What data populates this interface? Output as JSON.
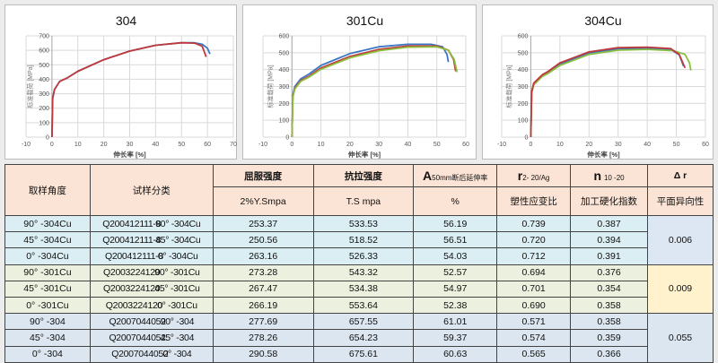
{
  "charts": [
    {
      "title": "304",
      "xlabel": "伸长率 [%]",
      "ylabel": "标准载荷 [MPa]",
      "type": "line",
      "xlim": [
        -10,
        70
      ],
      "ylim": [
        0,
        700
      ],
      "xticks": [
        -10,
        0,
        10,
        20,
        30,
        40,
        50,
        60,
        70
      ],
      "yticks": [
        0,
        100,
        200,
        300,
        400,
        500,
        600,
        700
      ],
      "grid": true,
      "series": [
        {
          "color": "#3b78c4",
          "points": [
            [
              0,
              0
            ],
            [
              0.3,
              270
            ],
            [
              1,
              330
            ],
            [
              3,
              385
            ],
            [
              6,
              410
            ],
            [
              10,
              455
            ],
            [
              20,
              535
            ],
            [
              30,
              595
            ],
            [
              40,
              635
            ],
            [
              50,
              652
            ],
            [
              55,
              652
            ],
            [
              58,
              642
            ],
            [
              60,
              615
            ],
            [
              61,
              575
            ]
          ]
        },
        {
          "color": "#c0393b",
          "points": [
            [
              0,
              0
            ],
            [
              0.3,
              270
            ],
            [
              1,
              330
            ],
            [
              3,
              385
            ],
            [
              6,
              410
            ],
            [
              10,
              455
            ],
            [
              20,
              535
            ],
            [
              30,
              595
            ],
            [
              40,
              635
            ],
            [
              50,
              652
            ],
            [
              55,
              650
            ],
            [
              58,
              628
            ],
            [
              59.5,
              555
            ]
          ]
        }
      ]
    },
    {
      "title": "301Cu",
      "xlabel": "伸长率 [%]",
      "ylabel": "标准载荷 [MPa]",
      "type": "line",
      "xlim": [
        -10,
        60
      ],
      "ylim": [
        0,
        600
      ],
      "xticks": [
        -10,
        0,
        10,
        20,
        30,
        40,
        50,
        60
      ],
      "yticks": [
        0,
        100,
        200,
        300,
        400,
        500,
        600
      ],
      "grid": true,
      "series": [
        {
          "color": "#3b78c4",
          "points": [
            [
              0,
              0
            ],
            [
              0.3,
              250
            ],
            [
              1,
              300
            ],
            [
              3,
              345
            ],
            [
              6,
              375
            ],
            [
              10,
              425
            ],
            [
              20,
              495
            ],
            [
              30,
              535
            ],
            [
              40,
              550
            ],
            [
              48,
              550
            ],
            [
              52,
              535
            ],
            [
              53.5,
              490
            ],
            [
              54,
              445
            ]
          ]
        },
        {
          "color": "#c0393b",
          "points": [
            [
              0,
              0
            ],
            [
              0.3,
              240
            ],
            [
              1,
              290
            ],
            [
              3,
              335
            ],
            [
              6,
              362
            ],
            [
              10,
              410
            ],
            [
              20,
              478
            ],
            [
              30,
              520
            ],
            [
              40,
              540
            ],
            [
              50,
              540
            ],
            [
              54,
              515
            ],
            [
              55.8,
              460
            ],
            [
              56.5,
              390
            ]
          ]
        },
        {
          "color": "#8cbf3f",
          "points": [
            [
              0,
              0
            ],
            [
              0.3,
              235
            ],
            [
              1,
              285
            ],
            [
              3,
              330
            ],
            [
              6,
              357
            ],
            [
              10,
              402
            ],
            [
              20,
              470
            ],
            [
              30,
              512
            ],
            [
              40,
              533
            ],
            [
              50,
              535
            ],
            [
              54,
              515
            ],
            [
              56,
              460
            ],
            [
              57,
              385
            ]
          ]
        }
      ]
    },
    {
      "title": "304Cu",
      "xlabel": "伸长率 [%]",
      "ylabel": "标准载荷 [MPa]",
      "type": "line",
      "xlim": [
        -10,
        60
      ],
      "ylim": [
        0,
        600
      ],
      "xticks": [
        -10,
        0,
        10,
        20,
        30,
        40,
        50,
        60
      ],
      "yticks": [
        0,
        100,
        200,
        300,
        400,
        500,
        600
      ],
      "grid": true,
      "series": [
        {
          "color": "#3b78c4",
          "points": [
            [
              0,
              0
            ],
            [
              0.3,
              265
            ],
            [
              1,
              315
            ],
            [
              4,
              365
            ],
            [
              6,
              383
            ],
            [
              10,
              432
            ],
            [
              20,
              498
            ],
            [
              30,
              523
            ],
            [
              40,
              527
            ],
            [
              48,
              520
            ],
            [
              51,
              488
            ],
            [
              52.5,
              420
            ]
          ]
        },
        {
          "color": "#8cbf3f",
          "points": [
            [
              0,
              0
            ],
            [
              0.3,
              260
            ],
            [
              1,
              310
            ],
            [
              4,
              360
            ],
            [
              6,
              378
            ],
            [
              10,
              425
            ],
            [
              20,
              490
            ],
            [
              30,
              515
            ],
            [
              40,
              520
            ],
            [
              49,
              512
            ],
            [
              53,
              490
            ],
            [
              54.5,
              440
            ],
            [
              55,
              395
            ]
          ]
        },
        {
          "color": "#c0393b",
          "points": [
            [
              0,
              0
            ],
            [
              0.3,
              270
            ],
            [
              1,
              320
            ],
            [
              4,
              370
            ],
            [
              6,
              390
            ],
            [
              10,
              440
            ],
            [
              20,
              505
            ],
            [
              30,
              530
            ],
            [
              40,
              533
            ],
            [
              48,
              525
            ],
            [
              51,
              490
            ],
            [
              53,
              410
            ]
          ]
        }
      ]
    }
  ],
  "table": {
    "headers": {
      "angle": "取样角度",
      "sample": "试样分类",
      "ys": "屈服强度",
      "ys_unit": "2%Y.Smpa",
      "ts": "抗拉强度",
      "ts_unit": "T.S mpa",
      "el_big": "A",
      "el_sub": "50mm断后延伸率",
      "el_unit": "%",
      "r_big": "r",
      "r_sub": "2- 20/Ag",
      "r_name": "塑性应变比",
      "n_big": "n",
      "n_sub": "10 -20",
      "n_name": "加工硬化指数",
      "dr": "Δ r",
      "dr_name": "平面异向性"
    },
    "rows": [
      {
        "angle": "90° -304Cu",
        "id": "Q200412111-8",
        "sa": "90° -304Cu",
        "ys": "253.37",
        "ts": "533.53",
        "el": "56.19",
        "r": "0.739",
        "n": "0.387"
      },
      {
        "angle": "45° -304Cu",
        "id": "Q200412111-8",
        "sa": "45° -304Cu",
        "ys": "250.56",
        "ts": "518.52",
        "el": "56.51",
        "r": "0.720",
        "n": "0.394"
      },
      {
        "angle": "0° -304Cu",
        "id": "Q200412111-8",
        "sa": "0° -304Cu",
        "ys": "263.16",
        "ts": "526.33",
        "el": "54.03",
        "r": "0.712",
        "n": "0.391"
      },
      {
        "angle": "90° -301Cu",
        "id": "Q2003224120",
        "sa": "90° -301Cu",
        "ys": "273.28",
        "ts": "543.32",
        "el": "52.57",
        "r": "0.694",
        "n": "0.376"
      },
      {
        "angle": "45° -301Cu",
        "id": "Q2003224120",
        "sa": "45° -301Cu",
        "ys": "267.47",
        "ts": "534.38",
        "el": "54.97",
        "r": "0.701",
        "n": "0.354"
      },
      {
        "angle": "0° -301Cu",
        "id": "Q2003224120",
        "sa": "0° -301Cu",
        "ys": "266.19",
        "ts": "553.64",
        "el": "52.38",
        "r": "0.690",
        "n": "0.358"
      },
      {
        "angle": "90° -304",
        "id": "Q2007044052",
        "sa": "90° -304",
        "ys": "277.69",
        "ts": "657.55",
        "el": "61.01",
        "r": "0.571",
        "n": "0.358"
      },
      {
        "angle": "45° -304",
        "id": "Q2007044052",
        "sa": "45° -304",
        "ys": "278.26",
        "ts": "654.23",
        "el": "59.37",
        "r": "0.574",
        "n": "0.359"
      },
      {
        "angle": "0° -304",
        "id": "Q2007044052",
        "sa": "0° -304",
        "ys": "290.58",
        "ts": "675.61",
        "el": "60.63",
        "r": "0.565",
        "n": "0.366"
      }
    ],
    "dr_values": [
      "0.006",
      "0.009",
      "0.055"
    ],
    "colors": {
      "header": "#fbe4d5",
      "g304cu": "#daeef3",
      "g301cu": "#ebf1de",
      "g304": "#dce6f1",
      "dr009": "#fff2cc"
    }
  }
}
